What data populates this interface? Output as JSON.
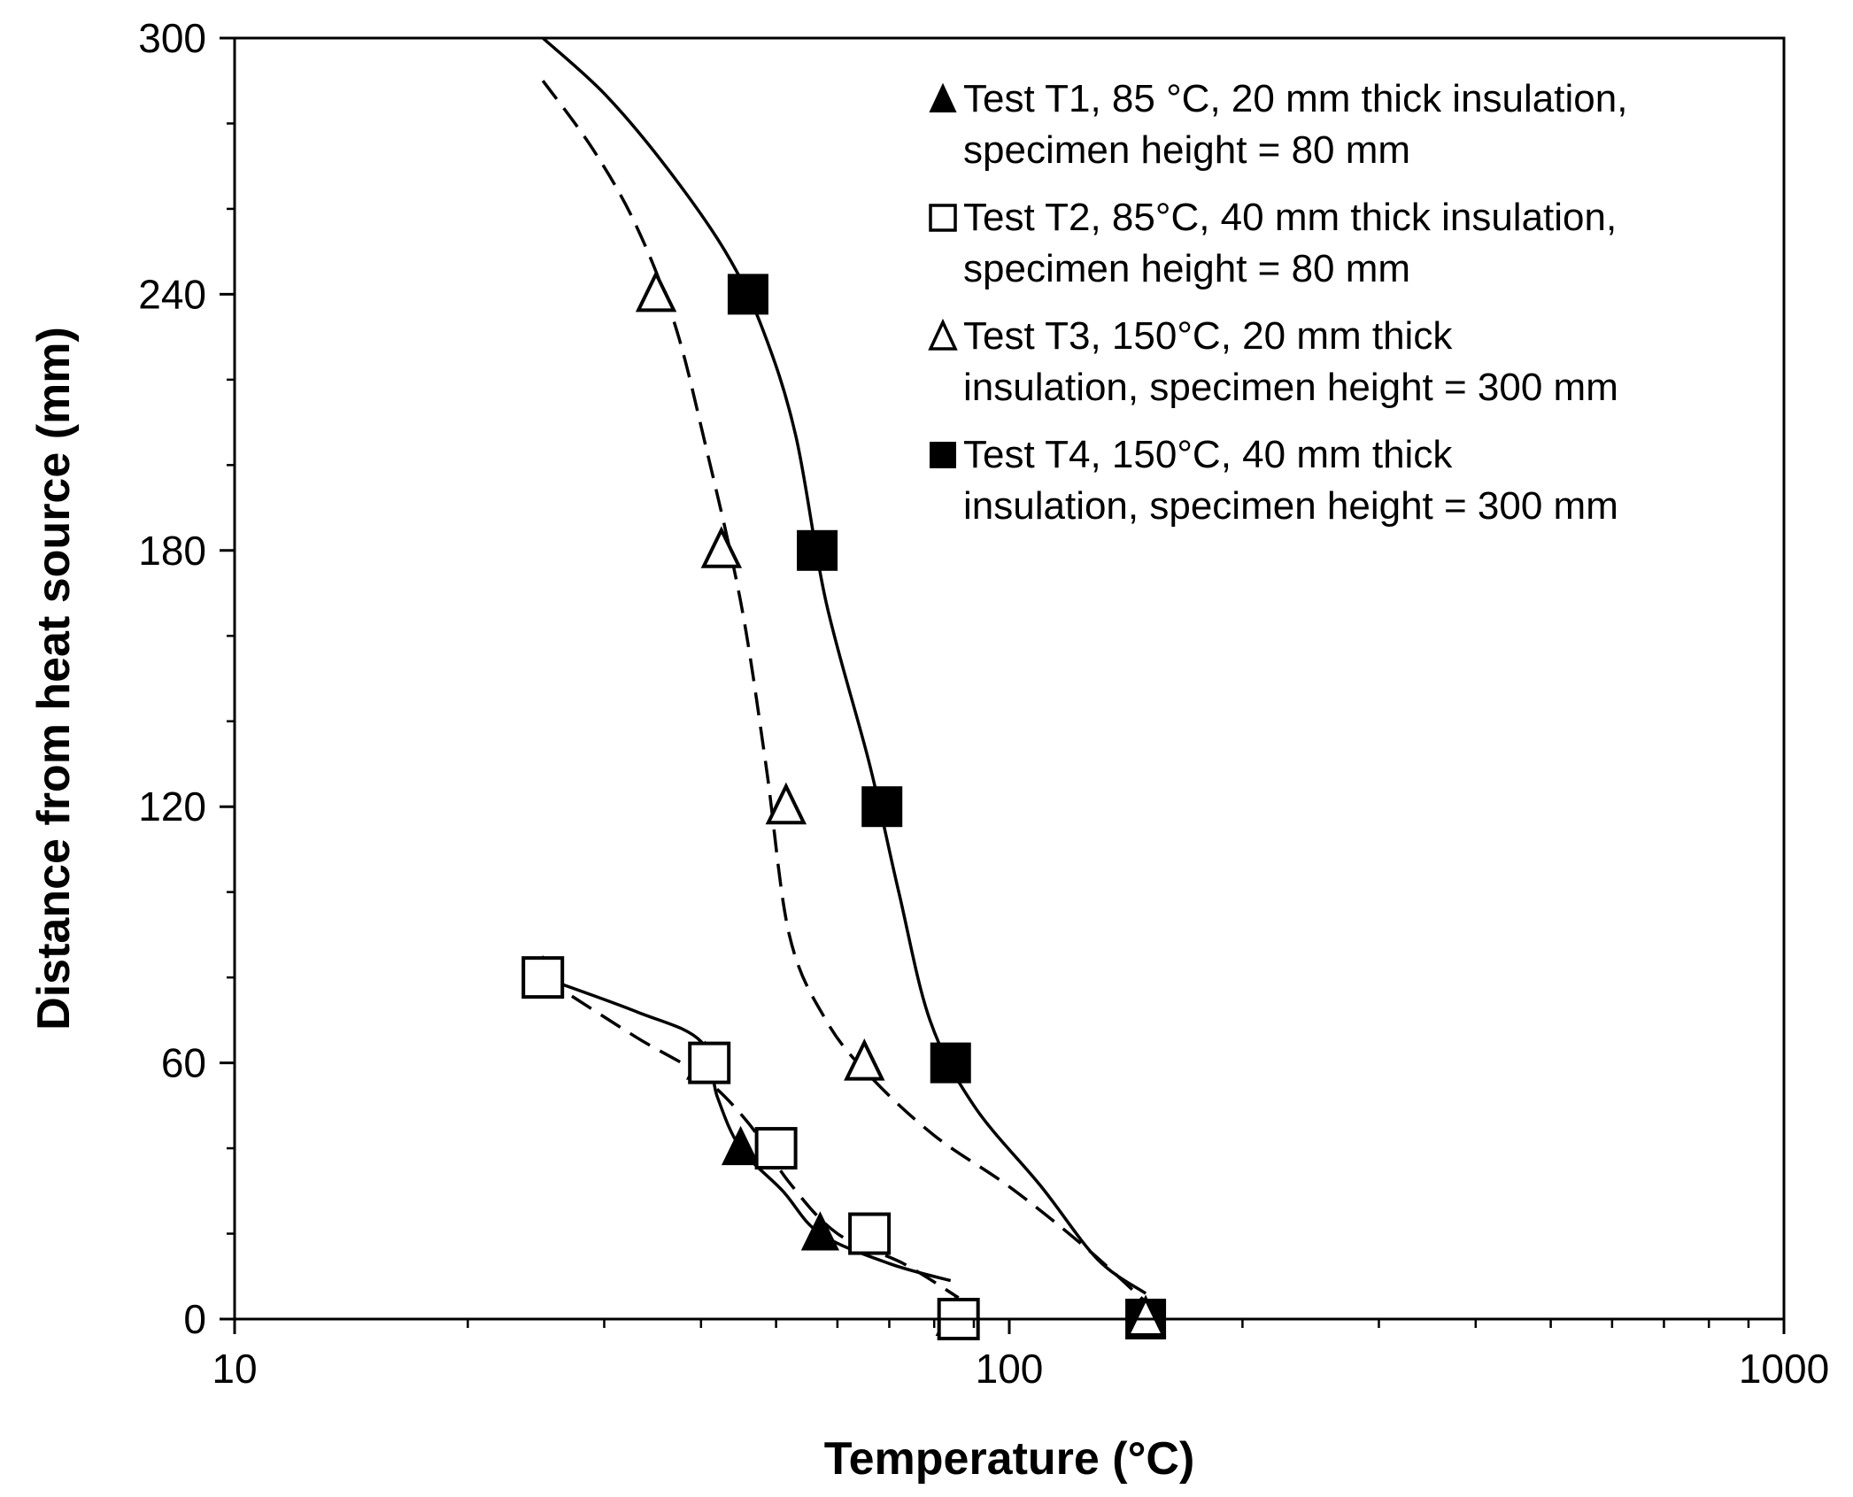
{
  "chart_data": {
    "type": "scatter",
    "title": "",
    "xlabel": "Temperature (°C)",
    "ylabel": "Distance from heat source (mm)",
    "xscale": "log",
    "xlim": [
      10,
      1000
    ],
    "ylim": [
      0,
      300
    ],
    "x_ticks": [
      10,
      100,
      1000
    ],
    "x_tick_labels": [
      "10",
      "100",
      "1000"
    ],
    "y_ticks": [
      0,
      60,
      120,
      180,
      240,
      300
    ],
    "y_tick_labels": [
      "0",
      "60",
      "120",
      "180",
      "240",
      "300"
    ],
    "grid": false,
    "legend_position": "top-right",
    "series": [
      {
        "name": "Test T1",
        "legend": [
          "Test T1, 85 °C, 20 mm thick insulation,",
          "specimen height = 80 mm"
        ],
        "marker": "triangle-filled",
        "line": "solid",
        "points": [
          {
            "x": 85.0,
            "y": 0
          },
          {
            "x": 57.0,
            "y": 20
          },
          {
            "x": 45.0,
            "y": 40
          },
          {
            "x": 40.5,
            "y": 60
          },
          {
            "x": 25.0,
            "y": 80
          }
        ],
        "curve": [
          [
            25.0,
            80
          ],
          [
            33.0,
            72
          ],
          [
            40.0,
            65
          ],
          [
            42.0,
            52
          ],
          [
            45.0,
            40
          ],
          [
            51.0,
            30
          ],
          [
            57.0,
            20
          ],
          [
            70.0,
            13
          ],
          [
            84.0,
            9
          ]
        ]
      },
      {
        "name": "Test T2",
        "legend": [
          "Test T2, 85°C, 40 mm thick insulation,",
          "specimen height = 80 mm"
        ],
        "marker": "square-open",
        "line": "dashed",
        "points": [
          {
            "x": 86.0,
            "y": 0
          },
          {
            "x": 66.0,
            "y": 20
          },
          {
            "x": 50.0,
            "y": 40
          },
          {
            "x": 41.0,
            "y": 60
          },
          {
            "x": 25.0,
            "y": 80
          }
        ],
        "curve": [
          [
            25.0,
            80
          ],
          [
            33.0,
            66
          ],
          [
            40.0,
            57
          ],
          [
            46.0,
            46
          ],
          [
            52.0,
            32
          ],
          [
            60.0,
            20
          ],
          [
            73.0,
            13
          ],
          [
            86.0,
            5
          ]
        ]
      },
      {
        "name": "Test T3",
        "legend": [
          "Test T3, 150°C, 20 mm thick",
          "insulation, specimen height = 300 mm"
        ],
        "marker": "triangle-open",
        "line": "dashed",
        "points": [
          {
            "x": 150.0,
            "y": 0
          },
          {
            "x": 65.0,
            "y": 60
          },
          {
            "x": 51.5,
            "y": 120
          },
          {
            "x": 42.5,
            "y": 180
          },
          {
            "x": 35.0,
            "y": 240
          }
        ],
        "curve": [
          [
            25.0,
            290
          ],
          [
            29.0,
            274
          ],
          [
            33.0,
            256
          ],
          [
            37.0,
            233
          ],
          [
            40.5,
            205
          ],
          [
            45.0,
            168
          ],
          [
            48.5,
            130
          ],
          [
            52.0,
            90
          ],
          [
            58.0,
            70
          ],
          [
            66.0,
            57
          ],
          [
            80.0,
            43
          ],
          [
            100.0,
            31
          ],
          [
            125.0,
            17
          ],
          [
            150.0,
            4
          ]
        ]
      },
      {
        "name": "Test T4",
        "legend": [
          "Test T4, 150°C, 40 mm thick",
          "insulation, specimen height = 300 mm"
        ],
        "marker": "square-filled",
        "line": "solid",
        "points": [
          {
            "x": 150.0,
            "y": 0
          },
          {
            "x": 84.0,
            "y": 60
          },
          {
            "x": 68.5,
            "y": 120
          },
          {
            "x": 56.5,
            "y": 180
          },
          {
            "x": 46.0,
            "y": 240
          }
        ],
        "curve": [
          [
            25.0,
            300
          ],
          [
            30.0,
            287
          ],
          [
            36.0,
            270
          ],
          [
            43.0,
            250
          ],
          [
            48.0,
            232
          ],
          [
            53.0,
            207
          ],
          [
            58.0,
            168
          ],
          [
            66.0,
            130
          ],
          [
            72.0,
            100
          ],
          [
            79.0,
            70
          ],
          [
            90.0,
            50
          ],
          [
            110.0,
            31
          ],
          [
            130.0,
            14
          ],
          [
            150.0,
            6
          ]
        ]
      }
    ]
  }
}
